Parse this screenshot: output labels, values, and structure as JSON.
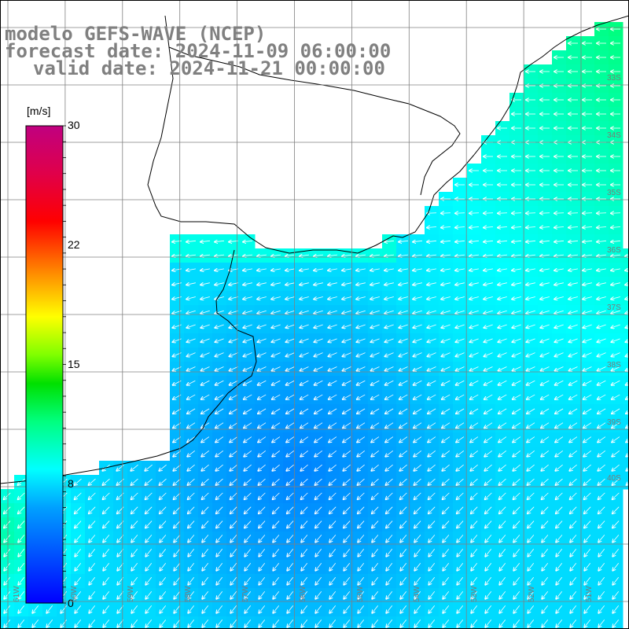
{
  "title": {
    "line1": "modelo GEFS-WAVE (NCEP)",
    "line2": "forecast date: 2024-11-09 06:00:00",
    "line3": "valid date: 2024-11-21 00:00:00"
  },
  "colorbar": {
    "unit": "[m/s]",
    "ticks": [
      {
        "label": "30",
        "value": 30
      },
      {
        "label": "22",
        "value": 22
      },
      {
        "label": "15",
        "value": 15
      },
      {
        "label": "8",
        "value": 8
      },
      {
        "label": "0",
        "value": 0
      }
    ],
    "min": 0,
    "max": 30
  },
  "lat_labels": [
    "33S",
    "34S",
    "35S",
    "36S",
    "37S",
    "38S",
    "39S",
    "40S"
  ],
  "lon_labels": [
    "61W",
    "60W",
    "59W",
    "58W",
    "57W",
    "56W",
    "55W",
    "54W",
    "53W",
    "52W",
    "51W"
  ],
  "colors": {
    "land": "#ffffff",
    "coast": "#000000",
    "grid": "#808080",
    "arrow": "#ffffff",
    "title": "#808080"
  },
  "field": {
    "variable": "wind speed",
    "unit": "m/s",
    "range_shown": [
      5,
      12
    ],
    "wind_direction": "from east / north-east, turning to north-east in south"
  }
}
